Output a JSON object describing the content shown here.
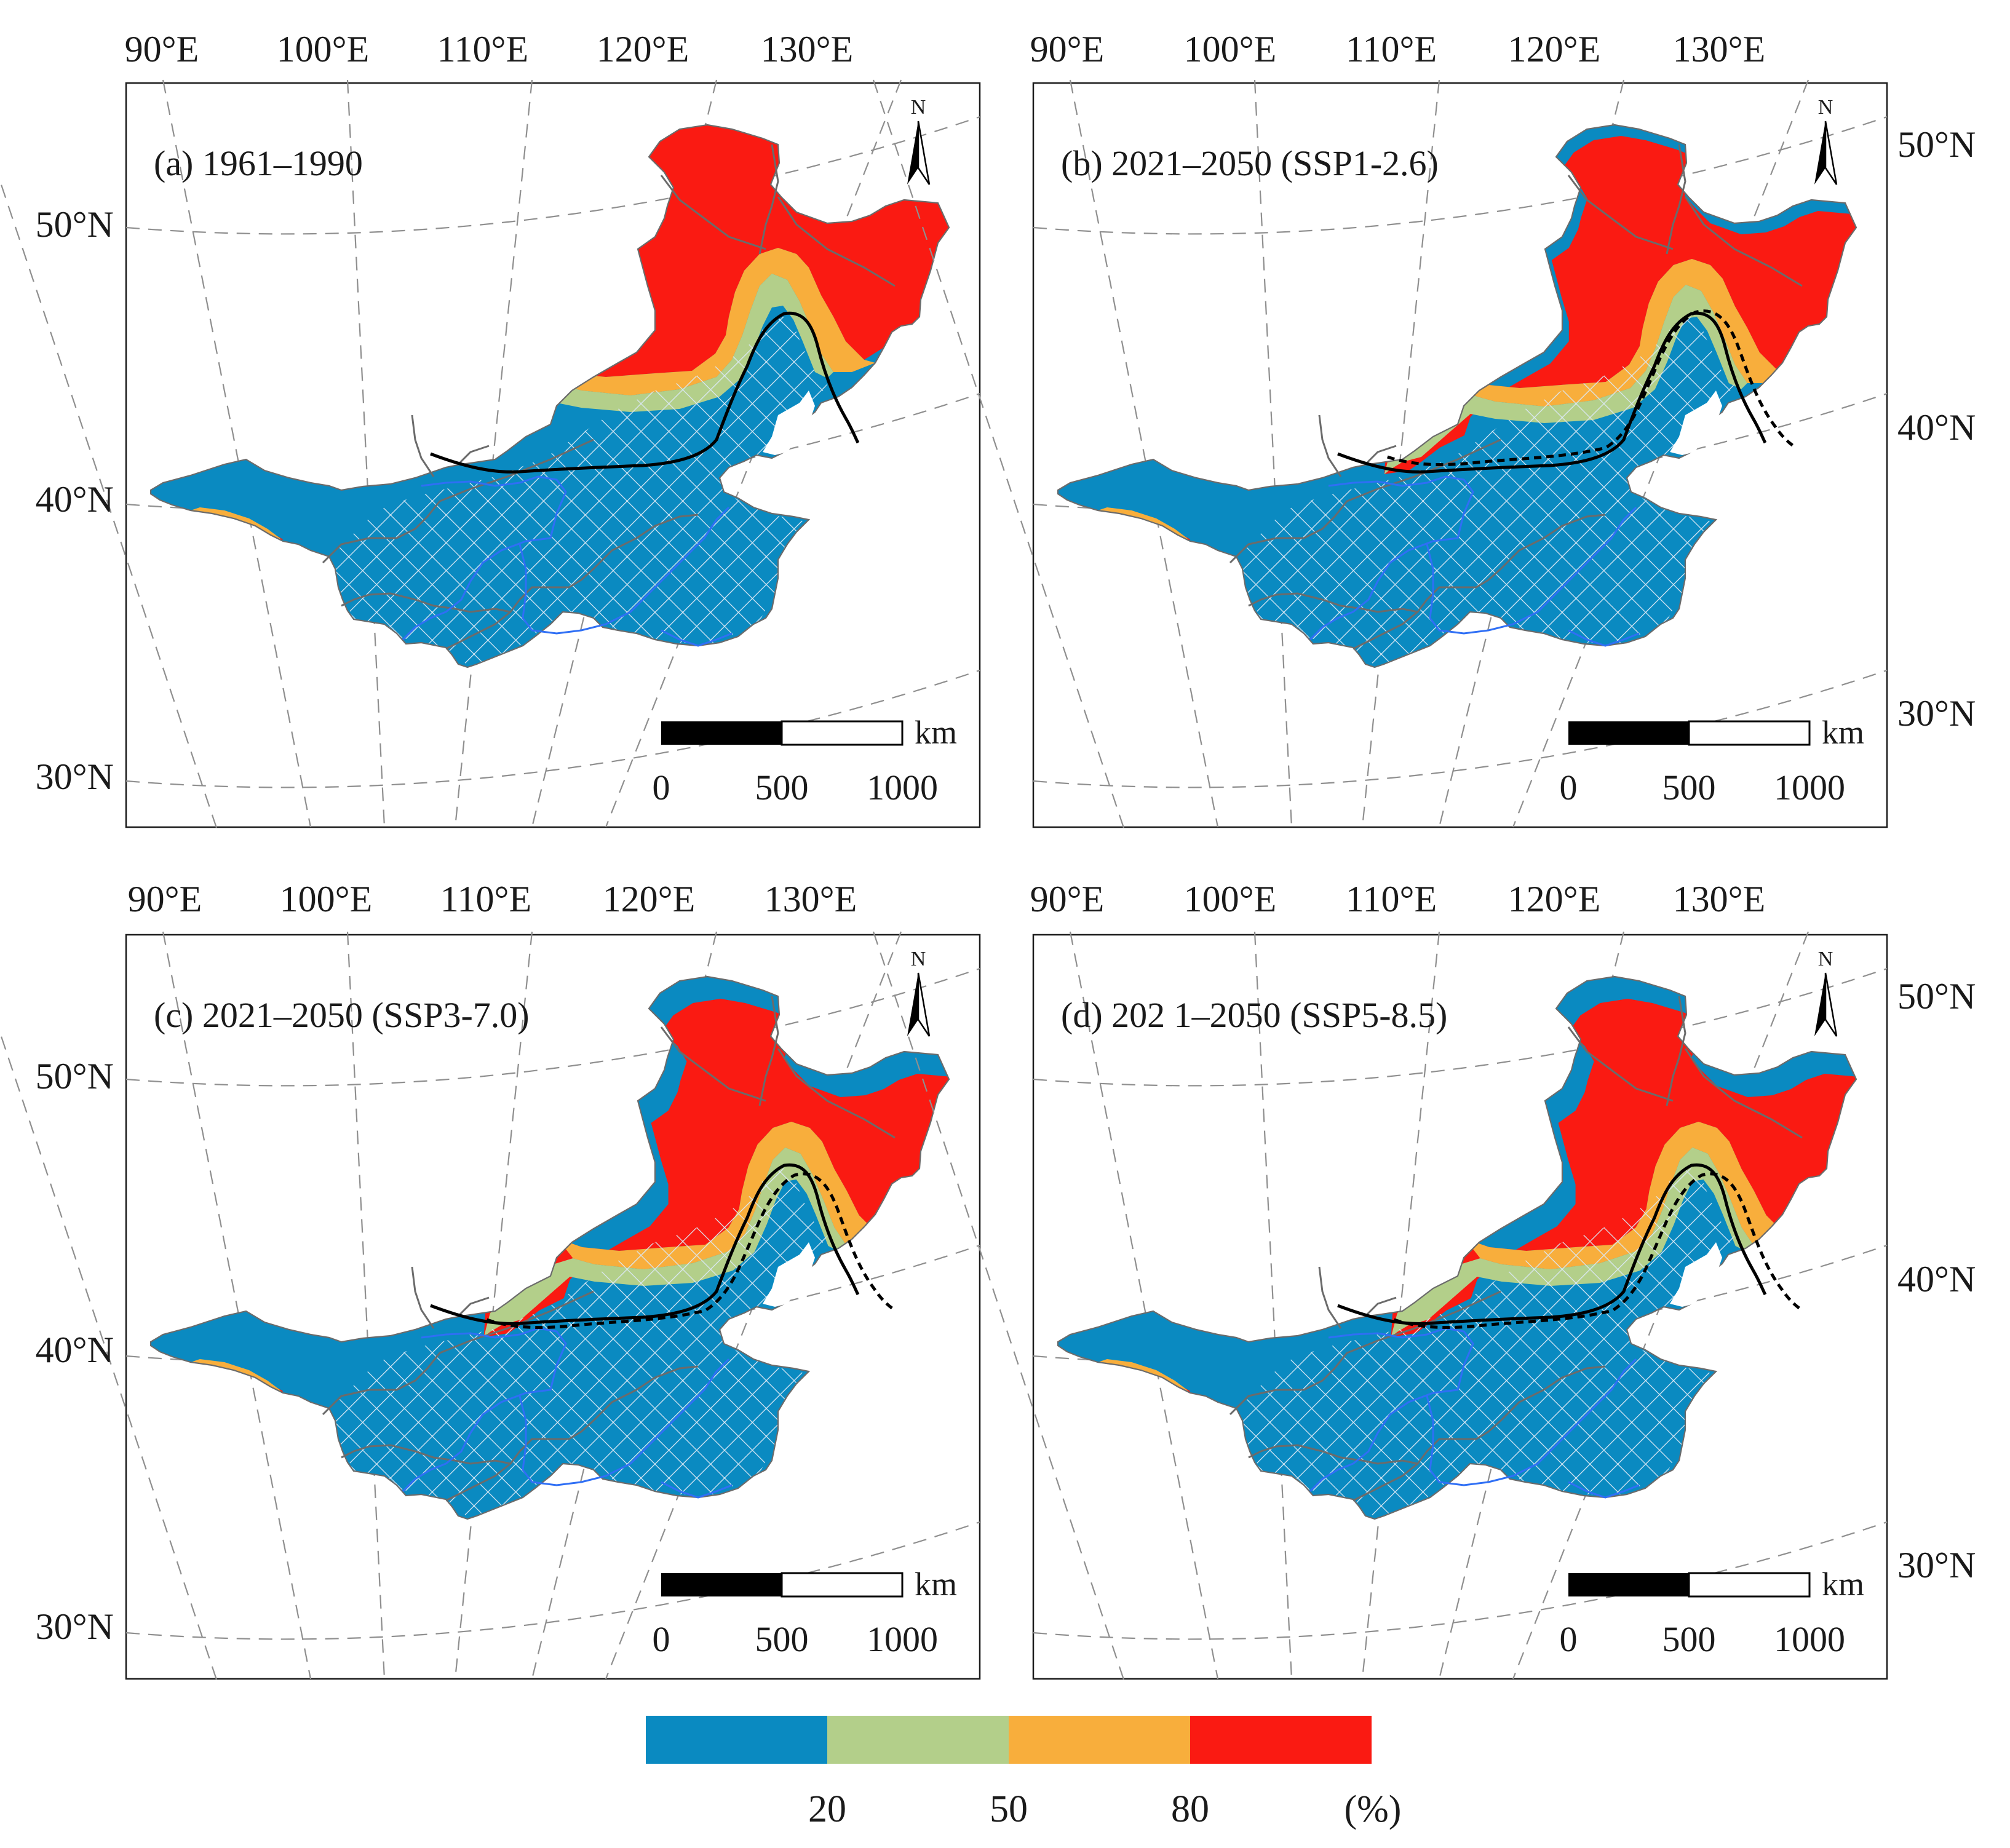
{
  "colors": {
    "blue": "#0a8ac1",
    "green": "#b3cf8a",
    "orange": "#f8ae3c",
    "red": "#fa1a12",
    "hatch": "#dbe8f4",
    "river": "#2f6ff5",
    "boundary": "#6b6b6b",
    "isoline": "#000000",
    "grid": "#8f8f8f"
  },
  "panels": [
    {
      "id": "a",
      "title": "(a) 1961–1990",
      "top_lon_labels": [
        "90°E",
        "100°E",
        "110°E",
        "120°E",
        "130°E"
      ],
      "lat_labels": [
        "50°N",
        "40°N",
        "30°N"
      ],
      "lat_side": "left",
      "north_label": "N",
      "scale": {
        "unit": "km",
        "ticks": [
          "0",
          "500",
          "1000"
        ]
      },
      "zone_shift": 0,
      "extra_dashed": false
    },
    {
      "id": "b",
      "title": "(b) 2021–2050 (SSP1-2.6)",
      "top_lon_labels": [
        "90°E",
        "100°E",
        "110°E",
        "120°E",
        "130°E"
      ],
      "lat_labels": [
        "50°N",
        "40°N",
        "30°N"
      ],
      "lat_side": "right",
      "north_label": "N",
      "scale": {
        "unit": "km",
        "ticks": [
          "0",
          "500",
          "1000"
        ]
      },
      "zone_shift": 1,
      "extra_dashed": true
    },
    {
      "id": "c",
      "title": "(c) 2021–2050 (SSP3-7.0)",
      "top_lon_labels": [
        "90°E",
        "100°E",
        "110°E",
        "120°E",
        "130°E"
      ],
      "lat_labels": [
        "50°N",
        "40°N",
        "30°N"
      ],
      "lat_side": "left",
      "north_label": "N",
      "scale": {
        "unit": "km",
        "ticks": [
          "0",
          "500",
          "1000"
        ]
      },
      "zone_shift": 2,
      "extra_dashed": true
    },
    {
      "id": "d",
      "title": "(d) 202 1–2050 (SSP5-8.5)",
      "top_lon_labels": [
        "90°E",
        "100°E",
        "110°E",
        "120°E",
        "130°E"
      ],
      "lat_labels": [
        "50°N",
        "40°N",
        "30°N"
      ],
      "lat_side": "right",
      "north_label": "N",
      "scale": {
        "unit": "km",
        "ticks": [
          "0",
          "500",
          "1000"
        ]
      },
      "zone_shift": 2,
      "extra_dashed": true
    }
  ],
  "legend": {
    "classes": [
      {
        "name": "< 20",
        "color": "#0a8ac1"
      },
      {
        "name": "20–50",
        "color": "#b3cf8a"
      },
      {
        "name": "50–80",
        "color": "#f8ae3c"
      },
      {
        "name": "> 80",
        "color": "#fa1a12"
      }
    ],
    "breaks": [
      "20",
      "50",
      "80"
    ],
    "unit": "(%)"
  }
}
